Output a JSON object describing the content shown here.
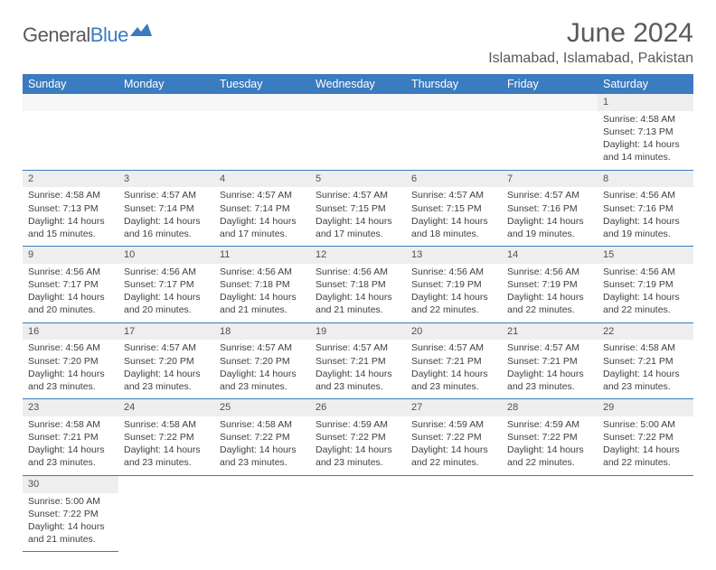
{
  "logo": {
    "text_a": "General",
    "text_b": "Blue"
  },
  "title": "June 2024",
  "location": "Islamabad, Islamabad, Pakistan",
  "header_bg": "#3b7bbf",
  "header_fg": "#ffffff",
  "daynum_bg": "#eeeeee",
  "border_color": "#3b7bbf",
  "weekdays": [
    "Sunday",
    "Monday",
    "Tuesday",
    "Wednesday",
    "Thursday",
    "Friday",
    "Saturday"
  ],
  "weeks": [
    [
      null,
      null,
      null,
      null,
      null,
      null,
      {
        "n": "1",
        "sunrise": "4:58 AM",
        "sunset": "7:13 PM",
        "dh": "14",
        "dm": "14"
      }
    ],
    [
      {
        "n": "2",
        "sunrise": "4:58 AM",
        "sunset": "7:13 PM",
        "dh": "14",
        "dm": "15"
      },
      {
        "n": "3",
        "sunrise": "4:57 AM",
        "sunset": "7:14 PM",
        "dh": "14",
        "dm": "16"
      },
      {
        "n": "4",
        "sunrise": "4:57 AM",
        "sunset": "7:14 PM",
        "dh": "14",
        "dm": "17"
      },
      {
        "n": "5",
        "sunrise": "4:57 AM",
        "sunset": "7:15 PM",
        "dh": "14",
        "dm": "17"
      },
      {
        "n": "6",
        "sunrise": "4:57 AM",
        "sunset": "7:15 PM",
        "dh": "14",
        "dm": "18"
      },
      {
        "n": "7",
        "sunrise": "4:57 AM",
        "sunset": "7:16 PM",
        "dh": "14",
        "dm": "19"
      },
      {
        "n": "8",
        "sunrise": "4:56 AM",
        "sunset": "7:16 PM",
        "dh": "14",
        "dm": "19"
      }
    ],
    [
      {
        "n": "9",
        "sunrise": "4:56 AM",
        "sunset": "7:17 PM",
        "dh": "14",
        "dm": "20"
      },
      {
        "n": "10",
        "sunrise": "4:56 AM",
        "sunset": "7:17 PM",
        "dh": "14",
        "dm": "20"
      },
      {
        "n": "11",
        "sunrise": "4:56 AM",
        "sunset": "7:18 PM",
        "dh": "14",
        "dm": "21"
      },
      {
        "n": "12",
        "sunrise": "4:56 AM",
        "sunset": "7:18 PM",
        "dh": "14",
        "dm": "21"
      },
      {
        "n": "13",
        "sunrise": "4:56 AM",
        "sunset": "7:19 PM",
        "dh": "14",
        "dm": "22"
      },
      {
        "n": "14",
        "sunrise": "4:56 AM",
        "sunset": "7:19 PM",
        "dh": "14",
        "dm": "22"
      },
      {
        "n": "15",
        "sunrise": "4:56 AM",
        "sunset": "7:19 PM",
        "dh": "14",
        "dm": "22"
      }
    ],
    [
      {
        "n": "16",
        "sunrise": "4:56 AM",
        "sunset": "7:20 PM",
        "dh": "14",
        "dm": "23"
      },
      {
        "n": "17",
        "sunrise": "4:57 AM",
        "sunset": "7:20 PM",
        "dh": "14",
        "dm": "23"
      },
      {
        "n": "18",
        "sunrise": "4:57 AM",
        "sunset": "7:20 PM",
        "dh": "14",
        "dm": "23"
      },
      {
        "n": "19",
        "sunrise": "4:57 AM",
        "sunset": "7:21 PM",
        "dh": "14",
        "dm": "23"
      },
      {
        "n": "20",
        "sunrise": "4:57 AM",
        "sunset": "7:21 PM",
        "dh": "14",
        "dm": "23"
      },
      {
        "n": "21",
        "sunrise": "4:57 AM",
        "sunset": "7:21 PM",
        "dh": "14",
        "dm": "23"
      },
      {
        "n": "22",
        "sunrise": "4:58 AM",
        "sunset": "7:21 PM",
        "dh": "14",
        "dm": "23"
      }
    ],
    [
      {
        "n": "23",
        "sunrise": "4:58 AM",
        "sunset": "7:21 PM",
        "dh": "14",
        "dm": "23"
      },
      {
        "n": "24",
        "sunrise": "4:58 AM",
        "sunset": "7:22 PM",
        "dh": "14",
        "dm": "23"
      },
      {
        "n": "25",
        "sunrise": "4:58 AM",
        "sunset": "7:22 PM",
        "dh": "14",
        "dm": "23"
      },
      {
        "n": "26",
        "sunrise": "4:59 AM",
        "sunset": "7:22 PM",
        "dh": "14",
        "dm": "23"
      },
      {
        "n": "27",
        "sunrise": "4:59 AM",
        "sunset": "7:22 PM",
        "dh": "14",
        "dm": "22"
      },
      {
        "n": "28",
        "sunrise": "4:59 AM",
        "sunset": "7:22 PM",
        "dh": "14",
        "dm": "22"
      },
      {
        "n": "29",
        "sunrise": "5:00 AM",
        "sunset": "7:22 PM",
        "dh": "14",
        "dm": "22"
      }
    ],
    [
      {
        "n": "30",
        "sunrise": "5:00 AM",
        "sunset": "7:22 PM",
        "dh": "14",
        "dm": "21"
      },
      null,
      null,
      null,
      null,
      null,
      null
    ]
  ],
  "labels": {
    "sunrise": "Sunrise: ",
    "sunset": "Sunset: ",
    "daylight_a": "Daylight: ",
    "daylight_b": " hours and ",
    "daylight_c": " minutes."
  }
}
